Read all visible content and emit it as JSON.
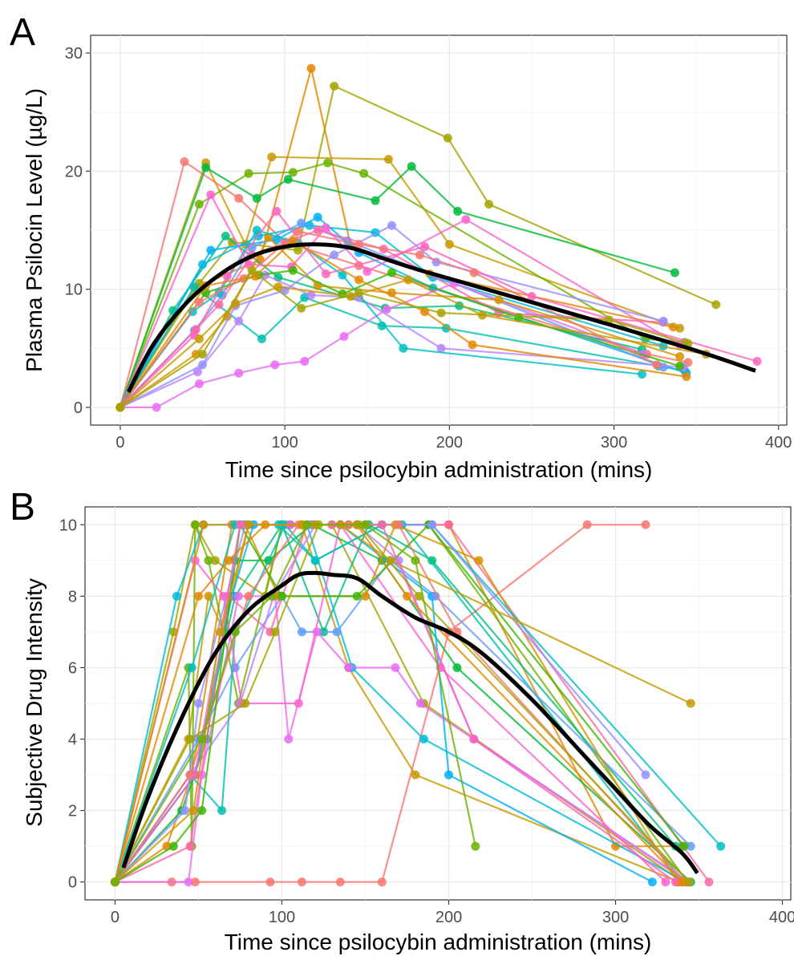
{
  "palette": [
    "#F8766D",
    "#E58700",
    "#C99800",
    "#A3A500",
    "#6BB100",
    "#00BA38",
    "#00BF7D",
    "#00C0AF",
    "#00BCD8",
    "#00B0F6",
    "#619CFF",
    "#B983FF",
    "#E76BF3",
    "#FD61D1",
    "#FF67A4",
    "#D89000",
    "#39B600",
    "#00BFC4",
    "#9590FF",
    "#FF62BC"
  ],
  "chart_data": [
    {
      "panel": "A",
      "type": "line",
      "xlabel": "Time since psilocybin administration (mins)",
      "ylabel": "Plasma Psilocin Level (µg/L)",
      "xlim": [
        -18,
        405
      ],
      "ylim": [
        -1.5,
        31.5
      ],
      "x_ticks": [
        0,
        100,
        200,
        300,
        400
      ],
      "y_ticks": [
        0,
        10,
        20,
        30
      ],
      "grid": true,
      "legend": "none",
      "series": [
        {
          "x": [
            0,
            39,
            72,
            100,
            145,
            320,
            345
          ],
          "y": [
            0,
            20.8,
            17.7,
            14.0,
            12.0,
            4.5,
            3.8
          ]
        },
        {
          "x": [
            0,
            45,
            85,
            116,
            140,
            188,
            336
          ],
          "y": [
            0,
            10.1,
            12.5,
            28.7,
            13.7,
            11.3,
            6.8
          ]
        },
        {
          "x": [
            0,
            52,
            76,
            92,
            163,
            200,
            340
          ],
          "y": [
            0,
            20.7,
            13.8,
            21.2,
            21.0,
            13.8,
            6.7
          ]
        },
        {
          "x": [
            0,
            48,
            68,
            108,
            130,
            199,
            224,
            362
          ],
          "y": [
            0,
            10.5,
            14.0,
            13.3,
            27.2,
            22.8,
            17.2,
            8.7
          ]
        },
        {
          "x": [
            0,
            48,
            78,
            105,
            126,
            148,
            319,
            343
          ],
          "y": [
            0,
            17.2,
            19.8,
            19.9,
            20.7,
            19.8,
            5.8,
            5.5
          ]
        },
        {
          "x": [
            0,
            52,
            83,
            102,
            155,
            177,
            205,
            337
          ],
          "y": [
            0,
            20.3,
            17.7,
            19.3,
            17.5,
            20.4,
            16.6,
            11.4
          ]
        },
        {
          "x": [
            0,
            32,
            64,
            96,
            161,
            206,
            317
          ],
          "y": [
            0,
            8.2,
            14.5,
            11.0,
            8.4,
            8.6,
            4.9
          ]
        },
        {
          "x": [
            0,
            45,
            86,
            112,
            159,
            198,
            327,
            343
          ],
          "y": [
            0,
            10.2,
            5.8,
            9.3,
            6.9,
            6.7,
            3.5,
            3.1
          ]
        },
        {
          "x": [
            0,
            50,
            84,
            115,
            155,
            190,
            330
          ],
          "y": [
            0,
            12.1,
            14.5,
            15.4,
            14.8,
            11.0,
            5.2
          ]
        },
        {
          "x": [
            0,
            55,
            95,
            120,
            145,
            190,
            344
          ],
          "y": [
            0,
            13.3,
            14.2,
            16.1,
            13.1,
            10.1,
            2.9
          ]
        },
        {
          "x": [
            0,
            45,
            62,
            80,
            110,
            138,
            330
          ],
          "y": [
            0,
            6.5,
            9.5,
            13.5,
            15.6,
            14.1,
            3.4
          ]
        },
        {
          "x": [
            0,
            47,
            72,
            88,
            116,
            145,
            195,
            342
          ],
          "y": [
            0,
            3.0,
            7.3,
            11.2,
            9.5,
            9.3,
            5.0,
            3.4
          ]
        },
        {
          "x": [
            0,
            22,
            48,
            72,
            94,
            112,
            136,
            162,
            203,
            318
          ],
          "y": [
            0,
            0,
            2.0,
            2.9,
            3.6,
            3.9,
            6.0,
            8.3,
            10.5,
            4.5
          ]
        },
        {
          "x": [
            0,
            55,
            78,
            104,
            125,
            150,
            210,
            340
          ],
          "y": [
            0,
            18.0,
            12.1,
            11.9,
            15.2,
            11.5,
            15.9,
            5.3
          ]
        },
        {
          "x": [
            0,
            46,
            60,
            80,
            120,
            160,
            230,
            330
          ],
          "y": [
            0,
            6.6,
            8.7,
            12.9,
            15.0,
            13.4,
            8.0,
            7.2
          ]
        },
        {
          "x": [
            0,
            46,
            65,
            90,
            120,
            165,
            230,
            340
          ],
          "y": [
            0,
            4.5,
            7.7,
            14.4,
            10.3,
            9.7,
            9.1,
            4.3
          ]
        },
        {
          "x": [
            0,
            52,
            84,
            105,
            135,
            165,
            242,
            340
          ],
          "y": [
            0,
            9.7,
            11.2,
            11.6,
            9.6,
            11.4,
            7.6,
            3.5
          ]
        },
        {
          "x": [
            0,
            44,
            60,
            83,
            108,
            135,
            172,
            317
          ],
          "y": [
            0,
            8.1,
            9.7,
            15.0,
            13.9,
            11.2,
            5.0,
            2.8
          ]
        },
        {
          "x": [
            0,
            50,
            70,
            100,
            130,
            165,
            192,
            330
          ],
          "y": [
            0,
            3.6,
            8.6,
            9.9,
            12.9,
            15.4,
            12.3,
            7.3
          ]
        },
        {
          "x": [
            0,
            45,
            65,
            95,
            125,
            185,
            250,
            387
          ],
          "y": [
            0,
            6.1,
            11.1,
            16.6,
            11.3,
            13.6,
            9.4,
            3.9
          ]
        },
        {
          "x": [
            0,
            48,
            75,
            108,
            145,
            182,
            215,
            326
          ],
          "y": [
            0,
            8.9,
            10.9,
            14.9,
            13.8,
            12.9,
            11.4,
            3.6
          ]
        },
        {
          "x": [
            0,
            52,
            82,
            105,
            145,
            185,
            214,
            344
          ],
          "y": [
            0,
            10.3,
            11.1,
            14.1,
            10.8,
            8.1,
            5.3,
            2.6
          ]
        },
        {
          "x": [
            0,
            48,
            70,
            96,
            140,
            175,
            220,
            356
          ],
          "y": [
            0,
            5.8,
            8.8,
            10.2,
            9.4,
            10.8,
            7.8,
            4.5
          ]
        },
        {
          "x": [
            0,
            50,
            80,
            110,
            145,
            195,
            297,
            345
          ],
          "y": [
            0,
            4.5,
            11.6,
            8.4,
            9.7,
            8.0,
            7.4,
            5.4
          ]
        }
      ],
      "smooth": {
        "x": [
          5,
          20,
          40,
          60,
          80,
          100,
          120,
          140,
          160,
          180,
          200,
          250,
          300,
          350,
          386
        ],
        "y": [
          1.3,
          5.3,
          8.8,
          11.2,
          12.8,
          13.6,
          13.8,
          13.5,
          12.6,
          11.7,
          10.9,
          8.9,
          6.9,
          4.8,
          3.1
        ]
      }
    },
    {
      "panel": "B",
      "type": "line",
      "xlabel": "Time since psilocybin administration (mins)",
      "ylabel": "Subjective Drug Intensity",
      "xlim": [
        -18,
        405
      ],
      "ylim": [
        -0.5,
        10.5
      ],
      "x_ticks": [
        0,
        100,
        200,
        300,
        400
      ],
      "y_ticks": [
        0,
        2,
        4,
        6,
        8,
        10
      ],
      "grid": true,
      "legend": "none",
      "series": [
        {
          "x": [
            0,
            34,
            48,
            93,
            112,
            135,
            160,
            200,
            283,
            318
          ],
          "y": [
            0,
            0,
            0,
            0,
            0,
            0,
            0,
            7,
            10,
            10
          ]
        },
        {
          "x": [
            0,
            31,
            46,
            70,
            100,
            150,
            200,
            300,
            340
          ],
          "y": [
            0,
            1,
            3,
            10,
            10,
            10,
            10,
            1,
            1
          ]
        },
        {
          "x": [
            0,
            44,
            56,
            65,
            80,
            112,
            140,
            180,
            338
          ],
          "y": [
            0,
            4,
            8,
            7,
            10,
            10,
            6,
            3,
            0
          ]
        },
        {
          "x": [
            0,
            35,
            48,
            60,
            90,
            100,
            130,
            185,
            340
          ],
          "y": [
            0,
            7,
            10,
            9,
            8,
            10,
            10,
            5,
            0
          ]
        },
        {
          "x": [
            0,
            44,
            46,
            48,
            56,
            74,
            100,
            140,
            188,
            343
          ],
          "y": [
            0,
            6,
            1,
            10,
            9,
            5,
            10,
            10,
            10,
            0
          ]
        },
        {
          "x": [
            0,
            40,
            55,
            72,
            92,
            118,
            160,
            205,
            345
          ],
          "y": [
            0,
            2,
            4,
            9,
            9,
            10,
            9,
            6,
            0
          ]
        },
        {
          "x": [
            0,
            48,
            72,
            100,
            125,
            152,
            190,
            336
          ],
          "y": [
            0,
            3,
            8,
            10,
            7,
            10,
            9,
            1
          ]
        },
        {
          "x": [
            0,
            45,
            64,
            72,
            102,
            120,
            160,
            172,
            340
          ],
          "y": [
            0,
            3,
            2,
            7,
            10,
            9,
            10,
            10,
            0
          ]
        },
        {
          "x": [
            0,
            37,
            53,
            77,
            115,
            142,
            185,
            342
          ],
          "y": [
            0,
            8,
            10,
            10,
            10,
            6,
            4,
            0
          ]
        },
        {
          "x": [
            0,
            48,
            70,
            83,
            105,
            135,
            190,
            200,
            322
          ],
          "y": [
            0,
            3,
            8,
            10,
            10,
            10,
            8,
            3,
            0
          ]
        },
        {
          "x": [
            0,
            50,
            72,
            100,
            112,
            133,
            165,
            192,
            345
          ],
          "y": [
            0,
            4,
            6,
            8,
            7,
            7,
            9,
            8,
            1
          ]
        },
        {
          "x": [
            0,
            45,
            75,
            95,
            120,
            145,
            170,
            215,
            344
          ],
          "y": [
            0,
            3,
            5,
            8,
            10,
            10,
            9,
            4,
            0
          ]
        },
        {
          "x": [
            0,
            44,
            52,
            74,
            96,
            104,
            121,
            140,
            168,
            183,
            343
          ],
          "y": [
            0,
            0,
            3,
            8,
            8,
            4,
            7,
            6,
            6,
            5,
            0
          ]
        },
        {
          "x": [
            0,
            48,
            65,
            76,
            110,
            135,
            195,
            330
          ],
          "y": [
            0,
            9,
            8,
            5,
            5,
            10,
            6,
            0
          ]
        },
        {
          "x": [
            0,
            45,
            68,
            93,
            115,
            150,
            200,
            356
          ],
          "y": [
            0,
            1,
            8,
            7,
            10,
            10,
            10,
            0
          ]
        },
        {
          "x": [
            0,
            53,
            78,
            98,
            150,
            168,
            218,
            337
          ],
          "y": [
            0,
            10,
            10,
            8,
            8,
            10,
            9,
            0
          ]
        },
        {
          "x": [
            0,
            35,
            52,
            75,
            100,
            145,
            188,
            341
          ],
          "y": [
            0,
            1,
            2,
            10,
            8,
            8,
            10,
            1
          ]
        },
        {
          "x": [
            0,
            46,
            72,
            98,
            120,
            160,
            190,
            363
          ],
          "y": [
            0,
            6,
            10,
            10,
            9,
            10,
            10,
            1
          ]
        },
        {
          "x": [
            0,
            42,
            50,
            78,
            118,
            145,
            190,
            318
          ],
          "y": [
            0,
            2,
            5,
            10,
            10,
            10,
            10,
            3
          ]
        },
        {
          "x": [
            0,
            48,
            75,
            105,
            130,
            160,
            215,
            336
          ],
          "y": [
            0,
            3,
            10,
            10,
            10,
            10,
            4,
            0
          ]
        },
        {
          "x": [
            0,
            45,
            80,
            110,
            140,
            170,
            205,
            342
          ],
          "y": [
            0,
            3,
            8,
            10,
            10,
            10,
            7,
            0
          ]
        },
        {
          "x": [
            0,
            50,
            68,
            90,
            120,
            145,
            175,
            340
          ],
          "y": [
            0,
            8,
            9,
            10,
            10,
            10,
            8,
            0
          ]
        },
        {
          "x": [
            0,
            47,
            63,
            80,
            112,
            135,
            165,
            345
          ],
          "y": [
            0,
            2,
            7,
            10,
            10,
            10,
            9,
            5
          ]
        },
        {
          "x": [
            0,
            45,
            78,
            96,
            122,
            146,
            182,
            344
          ],
          "y": [
            0,
            4,
            5,
            7,
            10,
            10,
            8,
            0
          ]
        },
        {
          "x": [
            0,
            52,
            72,
            94,
            115,
            150,
            180,
            216
          ],
          "y": [
            0,
            4,
            7,
            8,
            10,
            10,
            9,
            1
          ]
        }
      ],
      "smooth": {
        "x": [
          5,
          20,
          40,
          60,
          80,
          100,
          110,
          120,
          130,
          145,
          160,
          180,
          200,
          220,
          250,
          280,
          300,
          320,
          340,
          349
        ],
        "y": [
          0.4,
          2.4,
          4.6,
          6.4,
          7.6,
          8.3,
          8.6,
          8.65,
          8.6,
          8.5,
          8.0,
          7.4,
          7.0,
          6.4,
          5.1,
          3.6,
          2.6,
          1.6,
          0.8,
          0.25
        ]
      }
    }
  ]
}
